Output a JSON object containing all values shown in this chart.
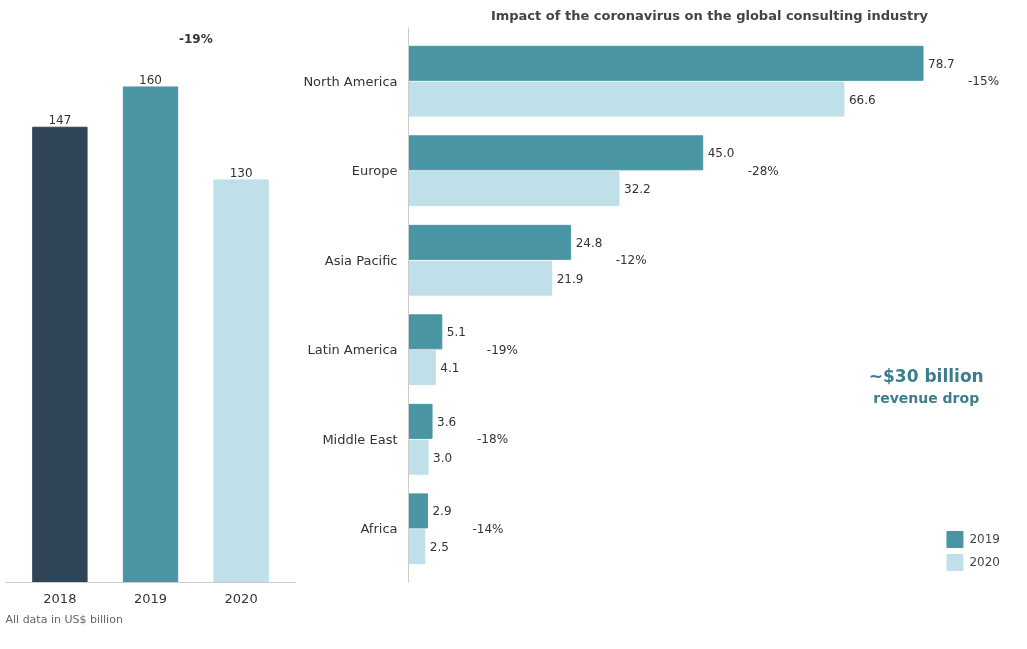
{
  "chart_data": [
    {
      "type": "bar",
      "categories": [
        "2018",
        "2019",
        "2020"
      ],
      "values": [
        147,
        160,
        130
      ],
      "colors": [
        "#2e4557",
        "#4a95a3",
        "#bfe0e8"
      ],
      "data_labels": true,
      "tick_labels": "x",
      "grid": false,
      "annotations": [
        "-19%",
        "All data in US$ billion"
      ]
    },
    {
      "type": "bar",
      "orientation": "horizontal",
      "title": "Impact of the coronavirus on the global consulting industry",
      "categories": [
        "North America",
        "Europe",
        "Asia Pacific",
        "Latin America",
        "Middle East",
        "Africa"
      ],
      "series": [
        {
          "name": "2019",
          "color": "#4a95a3",
          "values": [
            78.7,
            45.0,
            24.8,
            5.1,
            3.6,
            2.9
          ],
          "value_labels": [
            "78.7",
            "45.0",
            "24.8",
            "5.1",
            "3.6",
            "2.9"
          ]
        },
        {
          "name": "2020",
          "color": "#bfe0e8",
          "values": [
            66.6,
            32.2,
            21.9,
            4.1,
            3.0,
            2.5
          ],
          "value_labels": [
            "66.6",
            "32.2",
            "21.9",
            "4.1",
            "3.0",
            "2.5"
          ]
        }
      ],
      "tick_labels": "y",
      "grid": false,
      "legend": "bottom right",
      "annotations": [
        "-15%",
        "-28%",
        "-12%",
        "-19%",
        "-18%",
        "-14%",
        "~$30 billion revenue drop"
      ]
    }
  ]
}
